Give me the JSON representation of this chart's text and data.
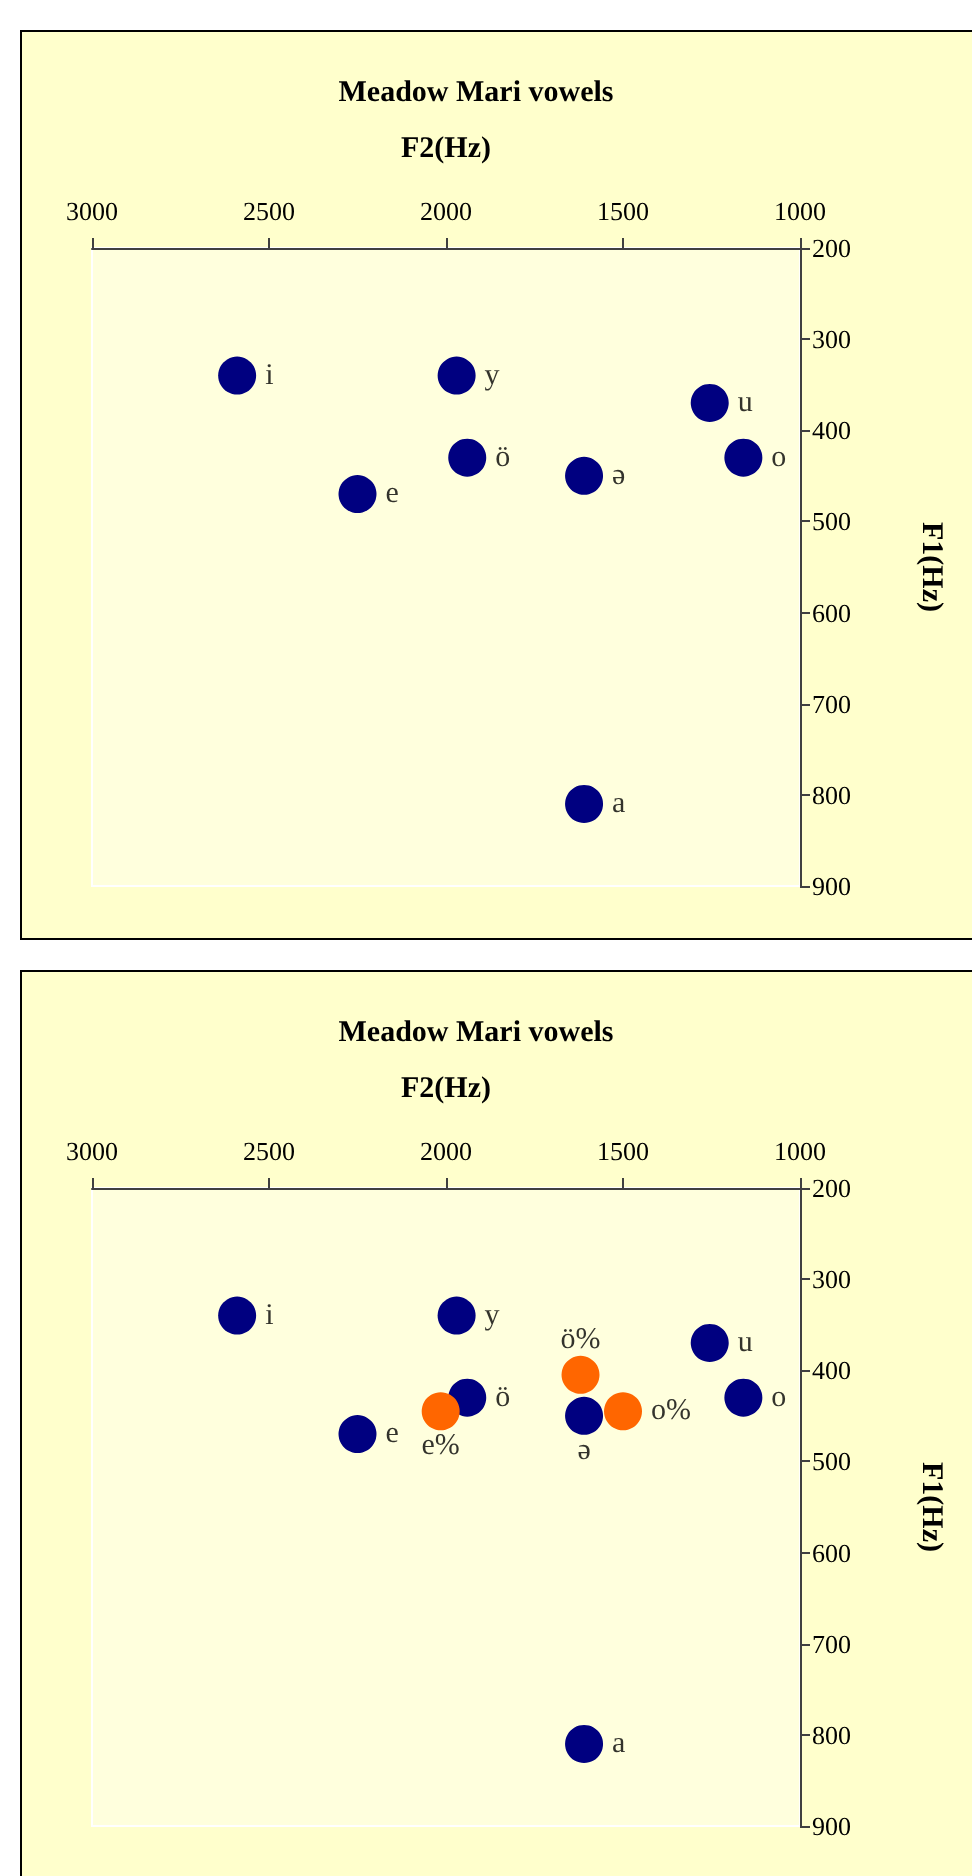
{
  "chart_data": [
    {
      "type": "scatter",
      "title": "Meadow Mari vowels",
      "xlabel": "F2(Hz)",
      "ylabel": "F1(Hz)",
      "xlim": [
        3000,
        1000
      ],
      "xticks": [
        3000,
        2500,
        2000,
        1500,
        1000
      ],
      "ylim": [
        900,
        200
      ],
      "yticks": [
        200,
        300,
        400,
        500,
        600,
        700,
        800,
        900
      ],
      "grid": false,
      "marker": "circle",
      "series": [
        {
          "color": "#000080",
          "x": [
            2590,
            1970,
            1255,
            1940,
            1160,
            1610,
            2250,
            1610
          ],
          "values": [
            340,
            340,
            370,
            430,
            430,
            450,
            470,
            810
          ]
        }
      ],
      "annotations": [
        {
          "text": "i",
          "x": 2590,
          "y": 340
        },
        {
          "text": "y",
          "x": 1970,
          "y": 340
        },
        {
          "text": "u",
          "x": 1255,
          "y": 370
        },
        {
          "text": "ö",
          "x": 1940,
          "y": 430
        },
        {
          "text": "o",
          "x": 1160,
          "y": 430
        },
        {
          "text": "ə",
          "x": 1610,
          "y": 450
        },
        {
          "text": "e",
          "x": 2250,
          "y": 470
        },
        {
          "text": "a",
          "x": 1610,
          "y": 810
        }
      ]
    },
    {
      "type": "scatter",
      "title": "Meadow Mari vowels",
      "xlabel": "F2(Hz)",
      "ylabel": "F1(Hz)",
      "xlim": [
        3000,
        1000
      ],
      "xticks": [
        3000,
        2500,
        2000,
        1500,
        1000
      ],
      "ylim": [
        900,
        200
      ],
      "yticks": [
        200,
        300,
        400,
        500,
        600,
        700,
        800,
        900
      ],
      "grid": false,
      "marker": "circle",
      "series": [
        {
          "color": "#000080",
          "x": [
            2590,
            1970,
            1255,
            1940,
            1160,
            1610,
            2250,
            1610
          ],
          "values": [
            340,
            340,
            370,
            430,
            430,
            450,
            470,
            810
          ]
        },
        {
          "color": "#ff6600",
          "x": [
            1620,
            2015,
            1500
          ],
          "values": [
            405,
            445,
            445
          ]
        }
      ],
      "annotations": [
        {
          "text": "i",
          "x": 2590,
          "y": 340
        },
        {
          "text": "y",
          "x": 1970,
          "y": 340
        },
        {
          "text": "u",
          "x": 1255,
          "y": 370
        },
        {
          "text": "ö",
          "x": 1940,
          "y": 430
        },
        {
          "text": "o",
          "x": 1160,
          "y": 430
        },
        {
          "text": "ə",
          "x": 1610,
          "y": 450
        },
        {
          "text": "e",
          "x": 2250,
          "y": 470
        },
        {
          "text": "a",
          "x": 1610,
          "y": 810
        },
        {
          "text": "ö%",
          "x": 1620,
          "y": 405
        },
        {
          "text": "e%",
          "x": 2015,
          "y": 445
        },
        {
          "text": "o%",
          "x": 1500,
          "y": 445
        }
      ]
    }
  ]
}
